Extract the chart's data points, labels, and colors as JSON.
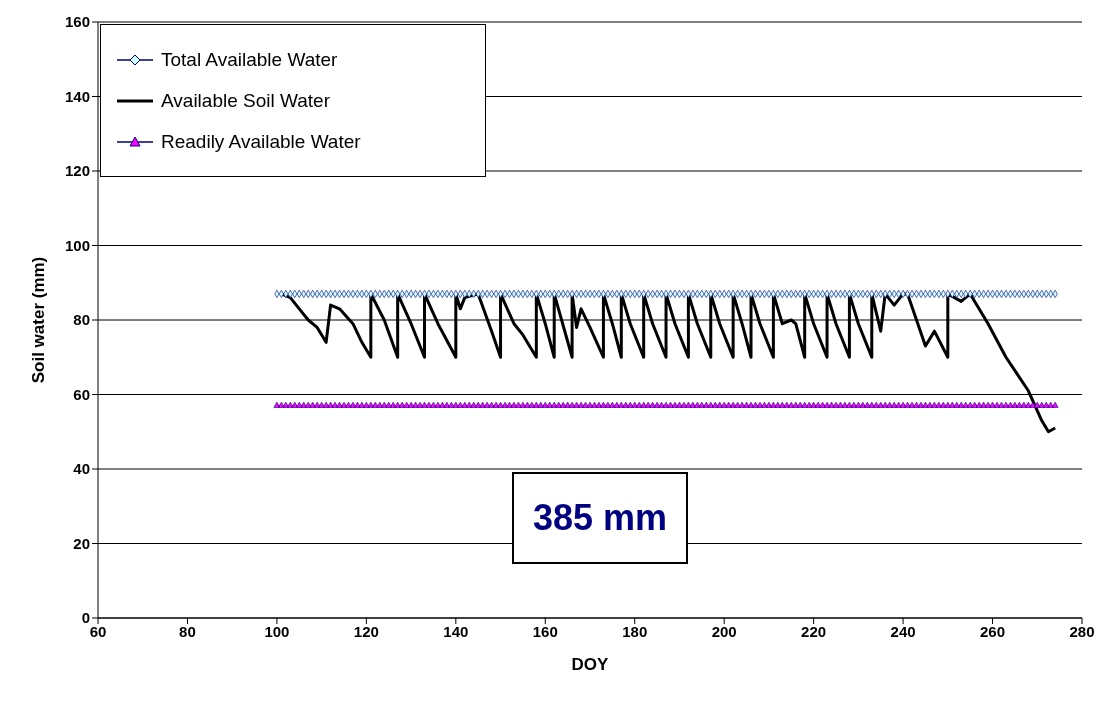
{
  "chart_data": {
    "type": "line",
    "xlabel": "DOY",
    "ylabel": "Soil water (mm)",
    "xlim": [
      60,
      280
    ],
    "xticks": [
      60,
      80,
      100,
      120,
      140,
      160,
      180,
      200,
      220,
      240,
      260,
      280
    ],
    "ylim": [
      0,
      160
    ],
    "yticks": [
      0,
      20,
      40,
      60,
      80,
      100,
      120,
      140,
      160
    ],
    "grid": "y",
    "legend": "top left",
    "line_style": "solid",
    "annotations": [
      "385 mm"
    ],
    "series": [
      {
        "name": "Total Available Water",
        "color": "#ccffff",
        "marker": "diamond",
        "x": [
          100,
          101,
          102,
          103,
          104,
          105,
          106,
          107,
          108,
          109,
          110,
          111,
          112,
          113,
          114,
          115,
          116,
          117,
          118,
          119,
          120,
          121,
          122,
          123,
          124,
          125,
          126,
          127,
          128,
          129,
          130,
          131,
          132,
          133,
          134,
          135,
          136,
          137,
          138,
          139,
          140,
          141,
          142,
          143,
          144,
          145,
          146,
          147,
          148,
          149,
          150,
          151,
          152,
          153,
          154,
          155,
          156,
          157,
          158,
          159,
          160,
          161,
          162,
          163,
          164,
          165,
          166,
          167,
          168,
          169,
          170,
          171,
          172,
          173,
          174,
          175,
          176,
          177,
          178,
          179,
          180,
          181,
          182,
          183,
          184,
          185,
          186,
          187,
          188,
          189,
          190,
          191,
          192,
          193,
          194,
          195,
          196,
          197,
          198,
          199,
          200,
          201,
          202,
          203,
          204,
          205,
          206,
          207,
          208,
          209,
          210,
          211,
          212,
          213,
          214,
          215,
          216,
          217,
          218,
          219,
          220,
          221,
          222,
          223,
          224,
          225,
          226,
          227,
          228,
          229,
          230,
          231,
          232,
          233,
          234,
          235,
          236,
          237,
          238,
          239,
          240,
          241,
          242,
          243,
          244,
          245,
          246,
          247,
          248,
          249,
          250,
          251,
          252,
          253,
          254,
          255,
          256,
          257,
          258,
          259,
          260,
          261,
          262,
          263,
          264,
          265,
          266,
          267,
          268,
          269,
          270,
          271,
          272,
          273,
          274
        ],
        "values": [
          87,
          87,
          87,
          87,
          87,
          87,
          87,
          87,
          87,
          87,
          87,
          87,
          87,
          87,
          87,
          87,
          87,
          87,
          87,
          87,
          87,
          87,
          87,
          87,
          87,
          87,
          87,
          87,
          87,
          87,
          87,
          87,
          87,
          87,
          87,
          87,
          87,
          87,
          87,
          87,
          87,
          87,
          87,
          87,
          87,
          87,
          87,
          87,
          87,
          87,
          87,
          87,
          87,
          87,
          87,
          87,
          87,
          87,
          87,
          87,
          87,
          87,
          87,
          87,
          87,
          87,
          87,
          87,
          87,
          87,
          87,
          87,
          87,
          87,
          87,
          87,
          87,
          87,
          87,
          87,
          87,
          87,
          87,
          87,
          87,
          87,
          87,
          87,
          87,
          87,
          87,
          87,
          87,
          87,
          87,
          87,
          87,
          87,
          87,
          87,
          87,
          87,
          87,
          87,
          87,
          87,
          87,
          87,
          87,
          87,
          87,
          87,
          87,
          87,
          87,
          87,
          87,
          87,
          87,
          87,
          87,
          87,
          87,
          87,
          87,
          87,
          87,
          87,
          87,
          87,
          87,
          87,
          87,
          87,
          87,
          87,
          87,
          87,
          87,
          87,
          87,
          87,
          87,
          87,
          87,
          87,
          87,
          87,
          87,
          87,
          87,
          87,
          87,
          87,
          87,
          87,
          87,
          87,
          87,
          87,
          87,
          87,
          87,
          87,
          87,
          87,
          87,
          87,
          87,
          87,
          87,
          87,
          87,
          87,
          87
        ]
      },
      {
        "name": "Available Soil Water",
        "color": "#000000",
        "marker": "none",
        "x": [
          101,
          103,
          105,
          107,
          109,
          111,
          112,
          114,
          117,
          119,
          121,
          121,
          124,
          127,
          127,
          130,
          133,
          133,
          136,
          140,
          140,
          141,
          142,
          145,
          148,
          150,
          150,
          153,
          155,
          158,
          158,
          160,
          162,
          162,
          166,
          166,
          167,
          168,
          170,
          173,
          173,
          175,
          177,
          177,
          179,
          182,
          182,
          184,
          187,
          187,
          189,
          192,
          192,
          194,
          197,
          197,
          199,
          202,
          202,
          204,
          206,
          206,
          208,
          211,
          211,
          213,
          215,
          216,
          218,
          218,
          220,
          223,
          223,
          225,
          228,
          228,
          230,
          233,
          233,
          235,
          236,
          238,
          240,
          241,
          245,
          247,
          250,
          250,
          253,
          255,
          259,
          263,
          268,
          271,
          272.5,
          274
        ],
        "values": [
          87,
          86,
          83,
          80,
          78,
          74,
          84,
          83,
          79,
          74,
          70,
          87,
          80,
          70,
          87,
          79,
          70,
          87,
          79,
          70,
          87,
          83,
          86,
          87,
          77,
          70,
          87,
          79,
          76,
          70,
          87,
          79,
          70,
          87,
          70,
          87,
          78,
          83,
          78,
          70,
          87,
          79,
          70,
          87,
          79,
          70,
          87,
          79,
          70,
          87,
          79,
          70,
          87,
          79,
          70,
          87,
          79,
          70,
          87,
          79,
          70,
          87,
          79,
          70,
          87,
          79,
          80,
          79,
          70,
          87,
          79,
          70,
          87,
          79,
          70,
          87,
          79,
          70,
          87,
          77,
          87,
          84,
          87,
          87,
          73,
          77,
          70,
          87,
          85,
          87,
          79,
          70,
          61,
          53,
          50,
          51
        ]
      },
      {
        "name": "Readily Available Water",
        "color": "#ff00ff",
        "marker": "triangle",
        "x": [
          100,
          101,
          102,
          103,
          104,
          105,
          106,
          107,
          108,
          109,
          110,
          111,
          112,
          113,
          114,
          115,
          116,
          117,
          118,
          119,
          120,
          121,
          122,
          123,
          124,
          125,
          126,
          127,
          128,
          129,
          130,
          131,
          132,
          133,
          134,
          135,
          136,
          137,
          138,
          139,
          140,
          141,
          142,
          143,
          144,
          145,
          146,
          147,
          148,
          149,
          150,
          151,
          152,
          153,
          154,
          155,
          156,
          157,
          158,
          159,
          160,
          161,
          162,
          163,
          164,
          165,
          166,
          167,
          168,
          169,
          170,
          171,
          172,
          173,
          174,
          175,
          176,
          177,
          178,
          179,
          180,
          181,
          182,
          183,
          184,
          185,
          186,
          187,
          188,
          189,
          190,
          191,
          192,
          193,
          194,
          195,
          196,
          197,
          198,
          199,
          200,
          201,
          202,
          203,
          204,
          205,
          206,
          207,
          208,
          209,
          210,
          211,
          212,
          213,
          214,
          215,
          216,
          217,
          218,
          219,
          220,
          221,
          222,
          223,
          224,
          225,
          226,
          227,
          228,
          229,
          230,
          231,
          232,
          233,
          234,
          235,
          236,
          237,
          238,
          239,
          240,
          241,
          242,
          243,
          244,
          245,
          246,
          247,
          248,
          249,
          250,
          251,
          252,
          253,
          254,
          255,
          256,
          257,
          258,
          259,
          260,
          261,
          262,
          263,
          264,
          265,
          266,
          267,
          268,
          269,
          270,
          271,
          272,
          273,
          274
        ],
        "values": [
          57,
          57,
          57,
          57,
          57,
          57,
          57,
          57,
          57,
          57,
          57,
          57,
          57,
          57,
          57,
          57,
          57,
          57,
          57,
          57,
          57,
          57,
          57,
          57,
          57,
          57,
          57,
          57,
          57,
          57,
          57,
          57,
          57,
          57,
          57,
          57,
          57,
          57,
          57,
          57,
          57,
          57,
          57,
          57,
          57,
          57,
          57,
          57,
          57,
          57,
          57,
          57,
          57,
          57,
          57,
          57,
          57,
          57,
          57,
          57,
          57,
          57,
          57,
          57,
          57,
          57,
          57,
          57,
          57,
          57,
          57,
          57,
          57,
          57,
          57,
          57,
          57,
          57,
          57,
          57,
          57,
          57,
          57,
          57,
          57,
          57,
          57,
          57,
          57,
          57,
          57,
          57,
          57,
          57,
          57,
          57,
          57,
          57,
          57,
          57,
          57,
          57,
          57,
          57,
          57,
          57,
          57,
          57,
          57,
          57,
          57,
          57,
          57,
          57,
          57,
          57,
          57,
          57,
          57,
          57,
          57,
          57,
          57,
          57,
          57,
          57,
          57,
          57,
          57,
          57,
          57,
          57,
          57,
          57,
          57,
          57,
          57,
          57,
          57,
          57,
          57,
          57,
          57,
          57,
          57,
          57,
          57,
          57,
          57,
          57,
          57,
          57,
          57,
          57,
          57,
          57,
          57,
          57,
          57,
          57,
          57,
          57,
          57,
          57,
          57,
          57,
          57,
          57,
          57,
          57,
          57,
          57,
          57,
          57,
          57
        ]
      }
    ]
  }
}
